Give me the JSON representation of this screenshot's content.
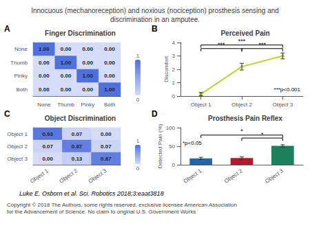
{
  "title": "Innocuous (mechanoreception) and noxious (nociception) prosthesis sensing and\ndiscrimination in an amputee.",
  "annotations": [
    "Luke E. Osborn et al. Sci. Robotics 2018;3:eaat3818",
    "Copyright © 2018 The Authors, some rights reserved, exclusive licensee American Association\nfor the Advancement of Science. No claim to original U.S. Government Works"
  ],
  "chart_data": [
    {
      "type": "heatmap",
      "title": "Finger Discrimination",
      "panel_label": "A",
      "categories": [
        "None",
        "Thumb",
        "Pinky",
        "Both"
      ],
      "values": [
        [
          1.0,
          0.0,
          0.0,
          0.0
        ],
        [
          0.0,
          1.0,
          0.0,
          0.0
        ],
        [
          0.0,
          0.0,
          1.0,
          0.0
        ],
        [
          0.0,
          0.0,
          0.0,
          1.0
        ]
      ],
      "value_labels": [
        [
          "1.00",
          "0.00",
          "0.00",
          "0.00"
        ],
        [
          "0.00",
          "1.00",
          "0.00",
          "0.00"
        ],
        [
          "0.00",
          "0.00",
          "1.00",
          "0.00"
        ],
        [
          "0.00",
          "0.00",
          "0.00",
          "1.00"
        ]
      ],
      "data_labels": true,
      "color_range": [
        0,
        1
      ],
      "color_ticks": [
        0,
        1
      ],
      "grid": false
    },
    {
      "type": "line",
      "title": "Perceived Pain",
      "panel_label": "B",
      "x": [
        1,
        2,
        3
      ],
      "values": [
        0.15,
        2.2,
        3.0
      ],
      "errors": [
        0.12,
        0.25,
        0.22
      ],
      "xlim": [
        0.5,
        3.5
      ],
      "xticks": [
        {
          "value": 1,
          "label": "Object 1"
        },
        {
          "value": 2,
          "label": "Object 2"
        },
        {
          "value": 3,
          "label": "Object 3"
        }
      ],
      "ylim": [
        0,
        4
      ],
      "yticks": [
        0,
        1,
        2,
        3,
        4
      ],
      "ylabel": "Discomfort",
      "marker": "circle",
      "grid": false,
      "annotations": [
        {
          "text": "***",
          "x": [
            1,
            2
          ],
          "y": 3.55
        },
        {
          "text": "***",
          "x": [
            2,
            3
          ],
          "y": 3.55
        },
        {
          "text": "***",
          "x": [
            1,
            3
          ],
          "y": 3.82
        },
        {
          "text": "***p<0.001"
        }
      ]
    },
    {
      "type": "heatmap",
      "title": "Object Discrimination",
      "panel_label": "C",
      "categories": [
        "Object 1",
        "Object 2",
        "Object 3"
      ],
      "values": [
        [
          0.93,
          0.07,
          0.0
        ],
        [
          0.07,
          0.87,
          0.07
        ],
        [
          0.0,
          0.13,
          0.87
        ]
      ],
      "value_labels": [
        [
          "0.93",
          "0.07",
          "0.00"
        ],
        [
          "0.07",
          "0.87",
          "0.07"
        ],
        [
          "0.00",
          "0.13",
          "0.87"
        ]
      ],
      "data_labels": true,
      "color_range": [
        0,
        1
      ],
      "color_ticks": [
        0,
        1
      ],
      "grid": false
    },
    {
      "type": "bar",
      "title": "Prosthesis Pain Reflex",
      "panel_label": "D",
      "categories": [
        "Object 1",
        "Object 2",
        "Object 3"
      ],
      "values": [
        17,
        18,
        51
      ],
      "errors": [
        3,
        3,
        3
      ],
      "colors": [
        "#2166ac",
        "#b2182b",
        "#1a7f5a"
      ],
      "ylim": [
        0,
        100
      ],
      "yticks": [
        0,
        50,
        100
      ],
      "ylabel": "Detected Pain (%)",
      "grid": false,
      "annotations": [
        {
          "text": "*",
          "x": [
            "Object 1",
            "Object 3"
          ],
          "y": 80
        },
        {
          "text": "*",
          "x": [
            "Object 2",
            "Object 3"
          ],
          "y": 72
        },
        {
          "text": "*p<0.05"
        }
      ]
    }
  ]
}
